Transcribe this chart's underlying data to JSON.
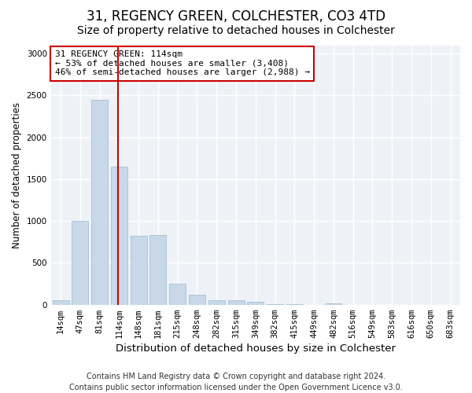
{
  "title1": "31, REGENCY GREEN, COLCHESTER, CO3 4TD",
  "title2": "Size of property relative to detached houses in Colchester",
  "xlabel": "Distribution of detached houses by size in Colchester",
  "ylabel": "Number of detached properties",
  "categories": [
    "14sqm",
    "47sqm",
    "81sqm",
    "114sqm",
    "148sqm",
    "181sqm",
    "215sqm",
    "248sqm",
    "282sqm",
    "315sqm",
    "349sqm",
    "382sqm",
    "415sqm",
    "449sqm",
    "482sqm",
    "516sqm",
    "549sqm",
    "583sqm",
    "616sqm",
    "650sqm",
    "683sqm"
  ],
  "values": [
    50,
    1000,
    2450,
    1650,
    825,
    830,
    250,
    120,
    50,
    50,
    30,
    5,
    5,
    0,
    20,
    0,
    0,
    0,
    0,
    0,
    0
  ],
  "bar_color": "#c8d8e8",
  "bar_edge_color": "#99b8cc",
  "vline_color": "#cc0000",
  "vline_x_index": 3,
  "annotation_text": "31 REGENCY GREEN: 114sqm\n← 53% of detached houses are smaller (3,408)\n46% of semi-detached houses are larger (2,988) →",
  "annotation_box_facecolor": "#ffffff",
  "annotation_box_edgecolor": "#cc0000",
  "ylim": [
    0,
    3100
  ],
  "yticks": [
    0,
    500,
    1000,
    1500,
    2000,
    2500,
    3000
  ],
  "footnote": "Contains HM Land Registry data © Crown copyright and database right 2024.\nContains public sector information licensed under the Open Government Licence v3.0.",
  "bg_color": "#ffffff",
  "plot_bg_color": "#eef2f7",
  "grid_color": "#ffffff",
  "title1_fontsize": 12,
  "title2_fontsize": 10,
  "xlabel_fontsize": 9.5,
  "ylabel_fontsize": 8.5,
  "tick_fontsize": 7.5,
  "annot_fontsize": 8,
  "footnote_fontsize": 7
}
